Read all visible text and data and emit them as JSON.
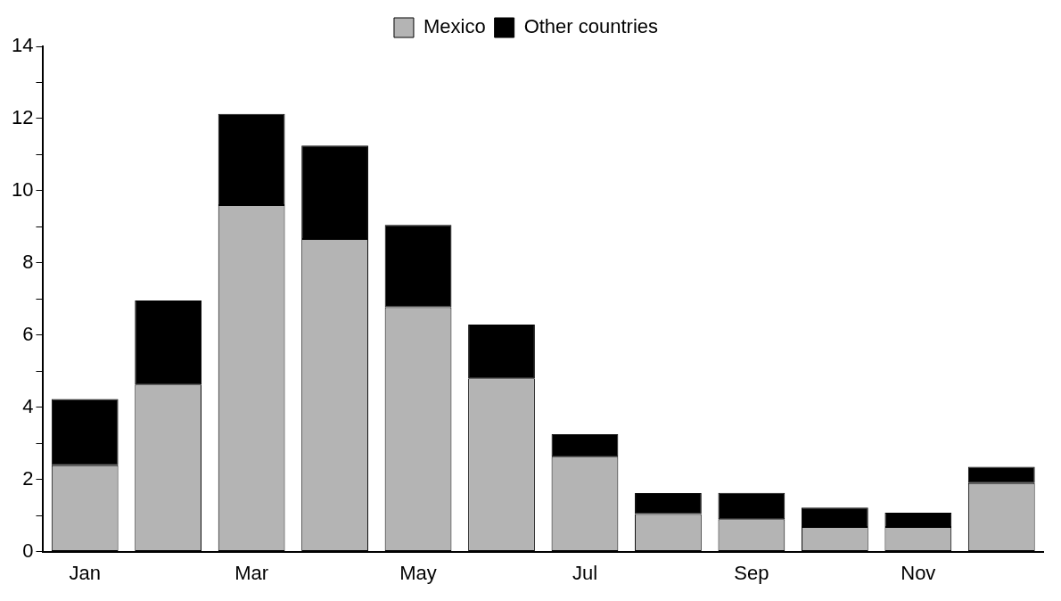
{
  "chart_data": {
    "type": "bar",
    "stacked": true,
    "categories": [
      "Jan",
      null,
      "Mar",
      null,
      "May",
      null,
      "Jul",
      null,
      "Sep",
      null,
      "Nov",
      null
    ],
    "series": [
      {
        "name": "Mexico",
        "color": "#b4b4b4",
        "values": [
          2.39,
          4.63,
          9.6,
          8.66,
          6.77,
          4.8,
          2.63,
          1.04,
          0.9,
          0.68,
          0.68,
          1.9
        ]
      },
      {
        "name": "Other countries",
        "color": "#000000",
        "values": [
          1.84,
          2.33,
          2.53,
          2.59,
          2.28,
          1.49,
          0.62,
          0.58,
          0.73,
          0.54,
          0.4,
          0.45
        ]
      }
    ],
    "ylim": [
      0,
      14
    ],
    "yticks": [
      0,
      {
        "value": 1,
        "label": null
      },
      2,
      {
        "value": 3,
        "label": null
      },
      4,
      {
        "value": 5,
        "label": null
      },
      6,
      {
        "value": 7,
        "label": null
      },
      8,
      {
        "value": 9,
        "label": null
      },
      10,
      {
        "value": 11,
        "label": null
      },
      12,
      {
        "value": 13,
        "label": null
      },
      14
    ],
    "grid": false,
    "legend": "top"
  }
}
